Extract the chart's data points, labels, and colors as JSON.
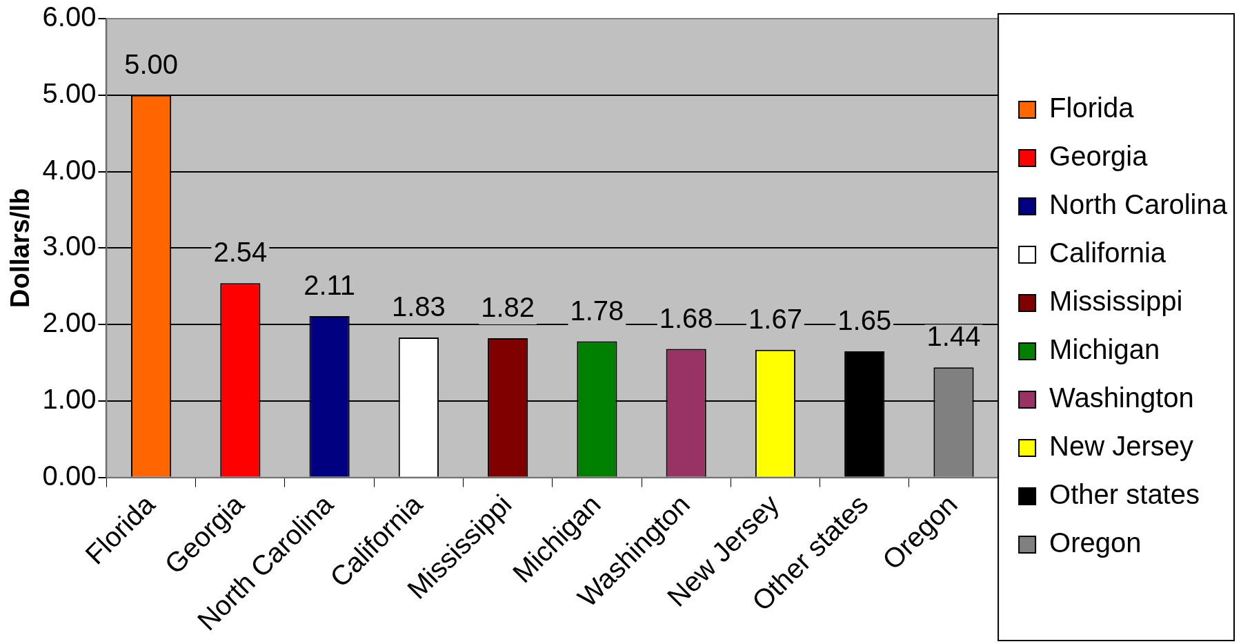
{
  "chart_data": {
    "type": "bar",
    "ylabel": "Dollars/lb",
    "categories": [
      "Florida",
      "Georgia",
      "North Carolina",
      "California",
      "Mississippi",
      "Michigan",
      "Washington",
      "New Jersey",
      "Other states",
      "Oregon"
    ],
    "series": [
      {
        "name": "Florida",
        "color": "#ff6600",
        "values": [
          5.0,
          null,
          null,
          null,
          null,
          null,
          null,
          null,
          null,
          null
        ],
        "value_labels": [
          "5.00",
          null,
          null,
          null,
          null,
          null,
          null,
          null,
          null,
          null
        ]
      },
      {
        "name": "Georgia",
        "color": "#ff0000",
        "values": [
          null,
          2.54,
          null,
          null,
          null,
          null,
          null,
          null,
          null,
          null
        ],
        "value_labels": [
          null,
          "2.54",
          null,
          null,
          null,
          null,
          null,
          null,
          null,
          null
        ]
      },
      {
        "name": "North Carolina",
        "color": "#000080",
        "values": [
          null,
          null,
          2.11,
          null,
          null,
          null,
          null,
          null,
          null,
          null
        ],
        "value_labels": [
          null,
          null,
          "2.11",
          null,
          null,
          null,
          null,
          null,
          null,
          null
        ]
      },
      {
        "name": "California",
        "color": "#ffffff",
        "values": [
          null,
          null,
          null,
          1.83,
          null,
          null,
          null,
          null,
          null,
          null
        ],
        "value_labels": [
          null,
          null,
          null,
          "1.83",
          null,
          null,
          null,
          null,
          null,
          null
        ]
      },
      {
        "name": "Mississippi",
        "color": "#800000",
        "values": [
          null,
          null,
          null,
          null,
          1.82,
          null,
          null,
          null,
          null,
          null
        ],
        "value_labels": [
          null,
          null,
          null,
          null,
          "1.82",
          null,
          null,
          null,
          null,
          null
        ]
      },
      {
        "name": "Michigan",
        "color": "#008000",
        "values": [
          null,
          null,
          null,
          null,
          null,
          1.78,
          null,
          null,
          null,
          null
        ],
        "value_labels": [
          null,
          null,
          null,
          null,
          null,
          "1.78",
          null,
          null,
          null,
          null
        ]
      },
      {
        "name": "Washington",
        "color": "#993366",
        "values": [
          null,
          null,
          null,
          null,
          null,
          null,
          1.68,
          null,
          null,
          null
        ],
        "value_labels": [
          null,
          null,
          null,
          null,
          null,
          null,
          "1.68",
          null,
          null,
          null
        ]
      },
      {
        "name": "New Jersey",
        "color": "#ffff00",
        "values": [
          null,
          null,
          null,
          null,
          null,
          null,
          null,
          1.67,
          null,
          null
        ],
        "value_labels": [
          null,
          null,
          null,
          null,
          null,
          null,
          null,
          "1.67",
          null,
          null
        ]
      },
      {
        "name": "Other states",
        "color": "#000000",
        "values": [
          null,
          null,
          null,
          null,
          null,
          null,
          null,
          null,
          1.65,
          null
        ],
        "value_labels": [
          null,
          null,
          null,
          null,
          null,
          null,
          null,
          null,
          "1.65",
          null
        ]
      },
      {
        "name": "Oregon",
        "color": "#808080",
        "values": [
          null,
          null,
          null,
          null,
          null,
          null,
          null,
          null,
          null,
          1.44
        ],
        "value_labels": [
          null,
          null,
          null,
          null,
          null,
          null,
          null,
          null,
          null,
          "1.44"
        ]
      }
    ],
    "ylim": [
      0,
      6
    ],
    "yticks": [
      {
        "value": 0,
        "label": "0.00"
      },
      {
        "value": 1,
        "label": "1.00"
      },
      {
        "value": 2,
        "label": "2.00"
      },
      {
        "value": 3,
        "label": "3.00"
      },
      {
        "value": 4,
        "label": "4.00"
      },
      {
        "value": 5,
        "label": "5.00"
      },
      {
        "value": 6,
        "label": "6.00"
      }
    ],
    "grid": "y",
    "legend": "right"
  }
}
